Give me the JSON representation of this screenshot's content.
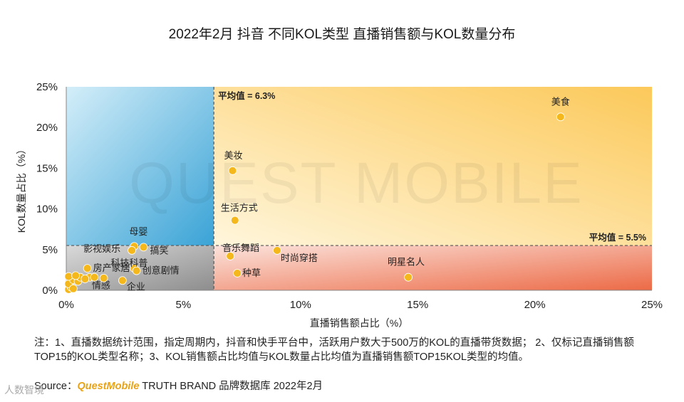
{
  "chart_data": {
    "type": "scatter",
    "title": "2022年2月 抖音 不同KOL类型 直播销售额与KOL数量分布",
    "xlabel": "直播销售额占比（%）",
    "ylabel": "KOL数量占比（%）",
    "xlim": [
      0,
      25
    ],
    "ylim": [
      0,
      25
    ],
    "x_ticks": [
      "0%",
      "5%",
      "10%",
      "15%",
      "20%",
      "25%"
    ],
    "y_ticks": [
      "0%",
      "5%",
      "10%",
      "15%",
      "20%",
      "25%"
    ],
    "avg_x": 6.3,
    "avg_y": 5.5,
    "avg_x_label": "平均值 = 6.3%",
    "avg_y_label": "平均值 = 5.5%",
    "points": [
      {
        "name": "美食",
        "x": 21.1,
        "y": 21.3
      },
      {
        "name": "美妆",
        "x": 7.1,
        "y": 14.7
      },
      {
        "name": "生活方式",
        "x": 7.2,
        "y": 8.6
      },
      {
        "name": "音乐舞蹈",
        "x": 7.0,
        "y": 4.2
      },
      {
        "name": "时尚穿搭",
        "x": 9.0,
        "y": 4.9
      },
      {
        "name": "种草",
        "x": 7.3,
        "y": 2.1
      },
      {
        "name": "明星名人",
        "x": 14.6,
        "y": 1.6
      },
      {
        "name": "母婴",
        "x": 2.9,
        "y": 5.4
      },
      {
        "name": "影视娱乐",
        "x": 2.8,
        "y": 4.9
      },
      {
        "name": "搞笑",
        "x": 3.3,
        "y": 5.3
      },
      {
        "name": "科技科普",
        "x": 2.9,
        "y": 2.7
      },
      {
        "name": "房产家居",
        "x": 0.9,
        "y": 2.7
      },
      {
        "name": "创意剧情",
        "x": 3.0,
        "y": 2.4
      },
      {
        "name": "情感",
        "x": 1.0,
        "y": 1.6
      },
      {
        "name": "企业",
        "x": 2.4,
        "y": 1.2
      },
      {
        "name": "",
        "x": 0.1,
        "y": 0.1
      },
      {
        "name": "",
        "x": 0.2,
        "y": 0.4
      },
      {
        "name": "",
        "x": 0.1,
        "y": 0.8
      },
      {
        "name": "",
        "x": 0.3,
        "y": 1.3
      },
      {
        "name": "",
        "x": 0.5,
        "y": 1.1
      },
      {
        "name": "",
        "x": 0.6,
        "y": 1.6
      },
      {
        "name": "",
        "x": 0.8,
        "y": 1.4
      },
      {
        "name": "",
        "x": 1.2,
        "y": 1.6
      },
      {
        "name": "",
        "x": 1.6,
        "y": 1.5
      },
      {
        "name": "",
        "x": 0.1,
        "y": 1.7
      },
      {
        "name": "",
        "x": 0.3,
        "y": 0.2
      },
      {
        "name": "",
        "x": 0.4,
        "y": 1.8
      }
    ]
  },
  "watermark": "QUEST MOBILE",
  "footnote": "注：1、直播数据统计范围，指定周期内，抖音和快手平台中，活跃用户数大于500万的KOL的直播带货数据； 2、仅标记直播销售额TOP15的KOL类型名称；3、KOL销售额占比均值与KOL数量占比均值为直播销售额TOP15KOL类型的均值。",
  "source": {
    "prefix": "Source：",
    "brand": "QuestMobile",
    "suffix": " TRUTH BRAND 品牌数据库 2022年2月"
  },
  "logo_text": "人数智境"
}
